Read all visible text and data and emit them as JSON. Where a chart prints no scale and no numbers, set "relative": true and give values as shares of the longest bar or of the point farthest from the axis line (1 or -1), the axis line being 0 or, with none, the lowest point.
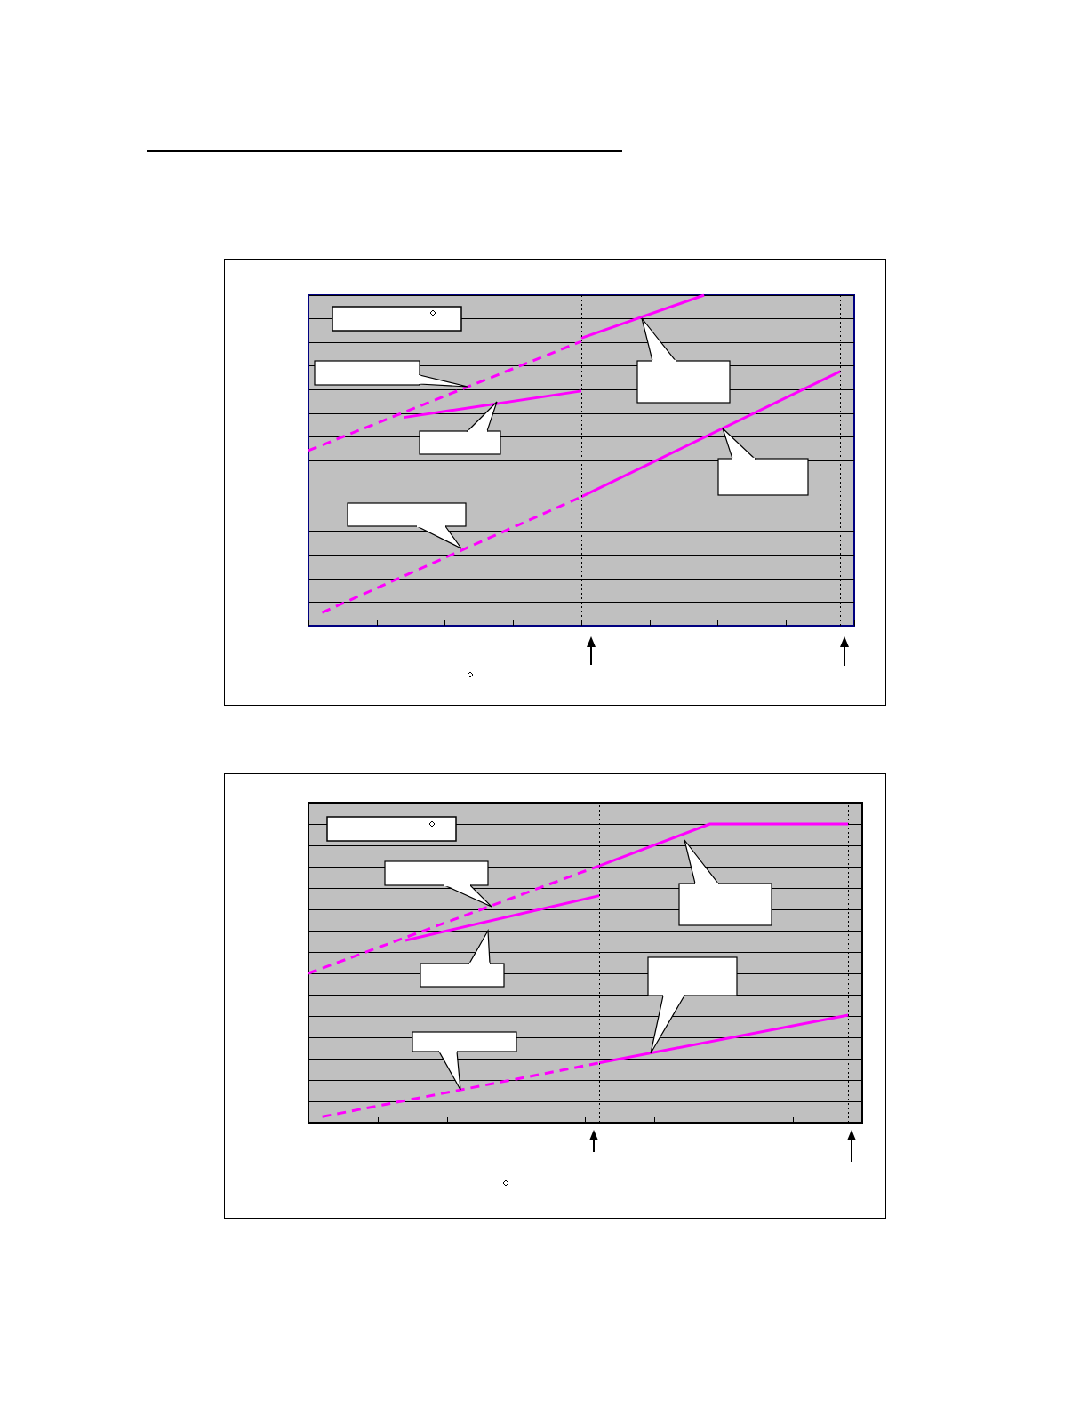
{
  "chart_data": [
    {
      "type": "line",
      "relative": true,
      "grid": "y",
      "marker": "none",
      "categories": [
        null,
        null,
        null,
        null,
        null,
        null,
        null,
        null,
        null,
        null,
        null,
        null,
        null,
        null,
        null,
        null,
        null,
        null,
        null,
        null,
        null,
        null,
        null,
        null,
        null,
        null,
        null,
        null,
        null,
        null,
        null,
        null,
        null,
        null,
        null,
        null,
        null,
        null,
        null,
        null,
        null
      ],
      "series": [
        {
          "color": "#ff00ff",
          "line_style": "dashed",
          "values": [
            0.53,
            null,
            null,
            null,
            null,
            null,
            null,
            null,
            null,
            null,
            null,
            null,
            null,
            null,
            null,
            null,
            null,
            null,
            null,
            null,
            0.86,
            null,
            null,
            null,
            null,
            null,
            null,
            null,
            null,
            null,
            null,
            null,
            null,
            null,
            null,
            null,
            null,
            null,
            null,
            null,
            null
          ]
        },
        {
          "color": "#ff00ff",
          "line_style": "solid",
          "values": [
            null,
            null,
            null,
            null,
            null,
            null,
            null,
            null,
            null,
            null,
            null,
            null,
            null,
            null,
            null,
            null,
            null,
            null,
            null,
            null,
            0.87,
            null,
            null,
            null,
            null,
            null,
            null,
            null,
            null,
            1.0,
            null,
            null,
            null,
            null,
            null,
            null,
            null,
            null,
            null,
            null,
            null
          ]
        },
        {
          "color": "#ff00ff",
          "line_style": "solid",
          "values": [
            null,
            null,
            null,
            null,
            null,
            null,
            null,
            0.63,
            null,
            null,
            null,
            null,
            null,
            null,
            null,
            null,
            null,
            null,
            null,
            null,
            0.71,
            null,
            null,
            null,
            null,
            null,
            null,
            null,
            null,
            null,
            null,
            null,
            null,
            null,
            null,
            null,
            null,
            null,
            null,
            null,
            null
          ]
        },
        {
          "color": "#ff00ff",
          "line_style": "dashed",
          "values": [
            null,
            0.04,
            null,
            null,
            null,
            null,
            null,
            null,
            null,
            null,
            null,
            null,
            null,
            null,
            null,
            null,
            null,
            null,
            null,
            null,
            0.39,
            null,
            null,
            null,
            null,
            null,
            null,
            null,
            null,
            null,
            null,
            null,
            null,
            null,
            null,
            null,
            null,
            null,
            null,
            null,
            null
          ]
        },
        {
          "color": "#ff00ff",
          "line_style": "solid",
          "values": [
            null,
            null,
            null,
            null,
            null,
            null,
            null,
            null,
            null,
            null,
            null,
            null,
            null,
            null,
            null,
            null,
            null,
            null,
            null,
            null,
            0.39,
            null,
            null,
            null,
            null,
            null,
            null,
            null,
            null,
            null,
            null,
            null,
            null,
            null,
            null,
            null,
            null,
            null,
            null,
            0.77,
            null
          ]
        }
      ]
    },
    {
      "type": "line",
      "relative": true,
      "grid": "y",
      "marker": "none",
      "categories": [
        null,
        null,
        null,
        null,
        null,
        null,
        null,
        null,
        null,
        null,
        null,
        null,
        null,
        null,
        null,
        null,
        null,
        null,
        null,
        null,
        null,
        null,
        null,
        null,
        null,
        null,
        null,
        null,
        null,
        null,
        null,
        null,
        null,
        null,
        null,
        null,
        null,
        null,
        null,
        null,
        null
      ],
      "series": [
        {
          "color": "#ff00ff",
          "line_style": "dashed",
          "values": [
            0.5,
            null,
            null,
            null,
            null,
            null,
            null,
            null,
            null,
            null,
            null,
            null,
            null,
            null,
            null,
            null,
            null,
            null,
            null,
            null,
            null,
            0.86,
            null,
            null,
            null,
            null,
            null,
            null,
            null,
            null,
            null,
            null,
            null,
            null,
            null,
            null,
            null,
            null,
            null,
            null,
            null
          ]
        },
        {
          "color": "#ff00ff",
          "line_style": "solid",
          "values": [
            null,
            null,
            null,
            null,
            null,
            null,
            null,
            null,
            null,
            null,
            null,
            null,
            null,
            null,
            null,
            null,
            null,
            null,
            null,
            null,
            null,
            0.86,
            null,
            null,
            null,
            null,
            null,
            null,
            null,
            1.0,
            null,
            null,
            null,
            null,
            null,
            null,
            null,
            null,
            null,
            1.0,
            null
          ]
        },
        {
          "color": "#ff00ff",
          "line_style": "solid",
          "values": [
            null,
            null,
            null,
            null,
            null,
            null,
            null,
            0.61,
            null,
            null,
            null,
            null,
            null,
            null,
            null,
            null,
            null,
            null,
            null,
            null,
            null,
            0.76,
            null,
            null,
            null,
            null,
            null,
            null,
            null,
            null,
            null,
            null,
            null,
            null,
            null,
            null,
            null,
            null,
            null,
            null,
            null
          ]
        },
        {
          "color": "#ff00ff",
          "line_style": "dashed",
          "values": [
            null,
            0.02,
            null,
            null,
            null,
            null,
            null,
            null,
            null,
            null,
            null,
            null,
            null,
            null,
            null,
            null,
            null,
            null,
            null,
            null,
            null,
            0.2,
            null,
            null,
            null,
            null,
            null,
            null,
            null,
            null,
            null,
            null,
            null,
            null,
            null,
            null,
            null,
            null,
            null,
            null,
            null
          ]
        },
        {
          "color": "#ff00ff",
          "line_style": "solid",
          "values": [
            null,
            null,
            null,
            null,
            null,
            null,
            null,
            null,
            null,
            null,
            null,
            null,
            null,
            null,
            null,
            null,
            null,
            null,
            null,
            null,
            null,
            0.2,
            null,
            null,
            null,
            null,
            null,
            null,
            null,
            null,
            null,
            null,
            null,
            null,
            null,
            null,
            null,
            null,
            null,
            0.36,
            null
          ]
        }
      ]
    }
  ]
}
